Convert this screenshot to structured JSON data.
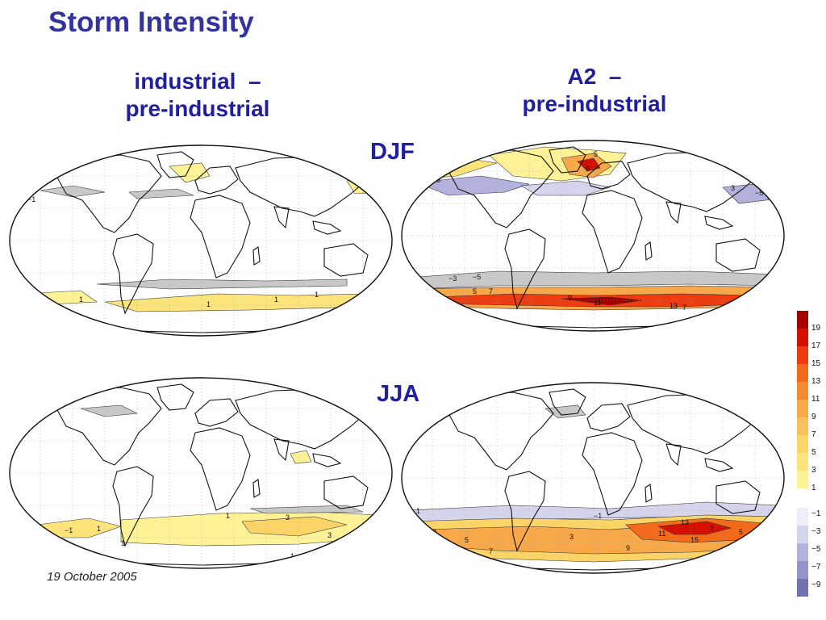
{
  "title": "Storm Intensity",
  "columns": {
    "left": {
      "line1": "industrial  –",
      "line2": "pre-industrial"
    },
    "right": {
      "line1": "A2  –",
      "line2": "pre-industrial"
    }
  },
  "rows": {
    "top": "DJF",
    "bottom": "JJA"
  },
  "footer": "19 October 2005",
  "colorbar": {
    "positive": [
      {
        "label": "19",
        "color": "#a50000"
      },
      {
        "label": "17",
        "color": "#d51000"
      },
      {
        "label": "15",
        "color": "#f03a10"
      },
      {
        "label": "13",
        "color": "#f26a1a"
      },
      {
        "label": "11",
        "color": "#f58a30"
      },
      {
        "label": "9",
        "color": "#f7a848"
      },
      {
        "label": "7",
        "color": "#f9c060"
      },
      {
        "label": "5",
        "color": "#fbd468"
      },
      {
        "label": "3",
        "color": "#fde47a"
      },
      {
        "label": "1",
        "color": "#fef296"
      }
    ],
    "negative": [
      {
        "label": "−1",
        "color": "#eeeef8"
      },
      {
        "label": "−3",
        "color": "#d4d4ec"
      },
      {
        "label": "−5",
        "color": "#b2b2dc"
      },
      {
        "label": "−7",
        "color": "#9494c8"
      },
      {
        "label": "−9",
        "color": "#7272b0"
      }
    ]
  },
  "panels": {
    "djf_industrial": {
      "labels": [
        "−1",
        "1",
        "1",
        "1",
        "1",
        "−1"
      ]
    },
    "djf_a2": {
      "labels": [
        "1",
        "5",
        "9",
        "−3",
        "−5",
        "3",
        "5",
        "7",
        "9",
        "11",
        "13",
        "7",
        "−1",
        "−3",
        "−5"
      ]
    },
    "jja_industrial": {
      "labels": [
        "−1",
        "1",
        "1",
        "3",
        "3",
        "1",
        "1"
      ]
    },
    "jja_a2": {
      "labels": [
        "1",
        "3",
        "5",
        "7",
        "9",
        "11",
        "13",
        "15",
        "7",
        "5",
        "3",
        "−1"
      ]
    }
  },
  "colors": {
    "title": "#3333a0",
    "heading": "#1f1fa0"
  }
}
